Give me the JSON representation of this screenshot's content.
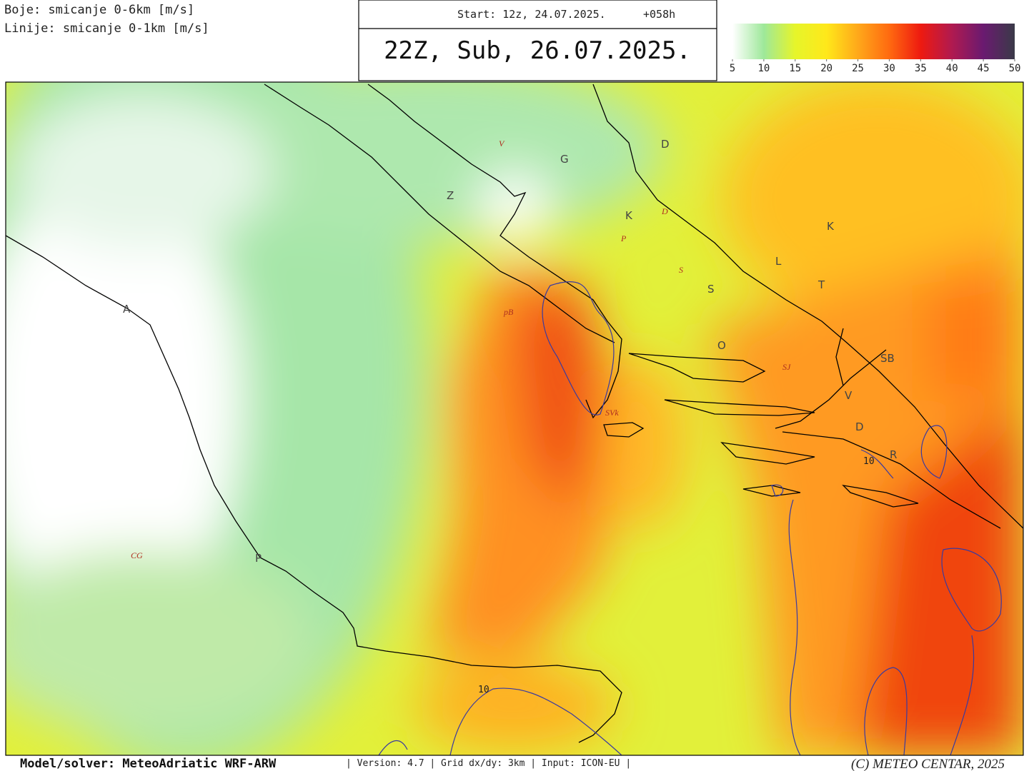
{
  "header": {
    "line1": "Boje: smicanje 0-6km [m/s]",
    "line2": "Linije: smicanje 0-1km [m/s]",
    "start": "Start: 12z, 24.07.2025.",
    "lead": "+058h",
    "valid": "22Z, Sub, 26.07.2025."
  },
  "colorbar": {
    "ticks": [
      5,
      10,
      15,
      20,
      25,
      30,
      35,
      40,
      45,
      50
    ],
    "colors": [
      "#ffffff",
      "#9ee89a",
      "#e6f52a",
      "#ffe81a",
      "#ffa81a",
      "#ff6a10",
      "#ee1a10",
      "#b01a50",
      "#6a1a70",
      "#3a3a48"
    ]
  },
  "map": {
    "labels": [
      "V",
      "G",
      "D",
      "Z",
      "K",
      "D",
      "P",
      "K",
      "L",
      "S",
      "S",
      "T",
      "pB",
      "O",
      "SB",
      "SJ",
      "V",
      "SVk",
      "D",
      "R",
      "CG",
      "A",
      "P"
    ],
    "contour_labels": [
      "10",
      "10"
    ]
  },
  "footer": {
    "model": "Model/solver: MeteoAdriatic WRF-ARW",
    "info": "| Version: 4.7 | Grid dx/dy: 3km | Input: ICON-EU |",
    "copyright": "(C) METEO CENTAR, 2025"
  }
}
